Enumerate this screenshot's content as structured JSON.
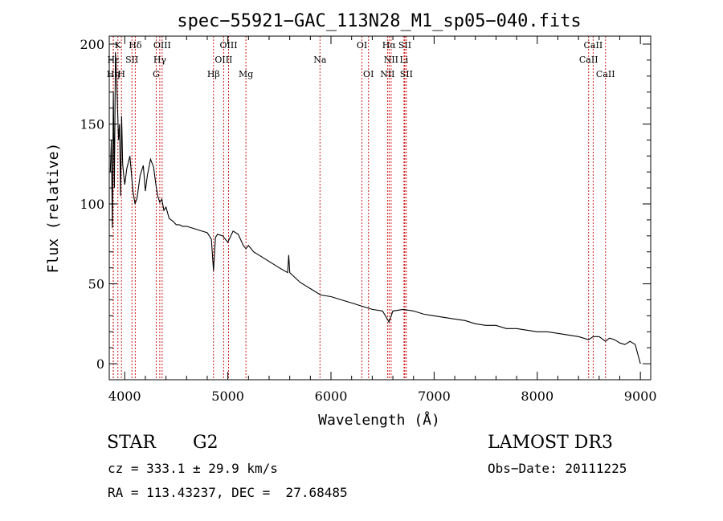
{
  "chart_data": {
    "type": "line",
    "title": "spec−55921−GAC_113N28_M1_sp05−040.fits",
    "xlabel": "Wavelength (Å)",
    "ylabel": "Flux (relative)",
    "xlim": [
      3850,
      9100
    ],
    "ylim": [
      -10,
      205
    ],
    "xticks": [
      4000,
      5000,
      6000,
      7000,
      8000,
      9000
    ],
    "yticks": [
      0,
      50,
      100,
      150,
      200
    ],
    "series": [
      {
        "name": "flux",
        "x": [
          3860,
          3870,
          3880,
          3890,
          3900,
          3910,
          3920,
          3930,
          3940,
          3950,
          3960,
          3970,
          3980,
          3990,
          4000,
          4020,
          4050,
          4080,
          4100,
          4120,
          4150,
          4180,
          4200,
          4220,
          4250,
          4280,
          4300,
          4320,
          4340,
          4360,
          4380,
          4400,
          4430,
          4470,
          4500,
          4530,
          4560,
          4600,
          4650,
          4700,
          4750,
          4800,
          4840,
          4861,
          4880,
          4900,
          4950,
          5000,
          5050,
          5100,
          5150,
          5175,
          5200,
          5250,
          5300,
          5400,
          5500,
          5580,
          5590,
          5600,
          5700,
          5800,
          5900,
          6000,
          6100,
          6200,
          6300,
          6400,
          6500,
          6563,
          6600,
          6700,
          6800,
          6900,
          7000,
          7100,
          7200,
          7300,
          7400,
          7500,
          7600,
          7700,
          7800,
          7900,
          8000,
          8100,
          8200,
          8300,
          8400,
          8498,
          8542,
          8600,
          8662,
          8700,
          8750,
          8800,
          8850,
          8900,
          8950,
          9000
        ],
        "values": [
          120,
          140,
          85,
          170,
          110,
          195,
          180,
          160,
          140,
          150,
          105,
          155,
          125,
          118,
          112,
          122,
          130,
          108,
          100,
          104,
          118,
          124,
          108,
          118,
          128,
          123,
          113,
          105,
          101,
          103,
          96,
          98,
          91,
          89,
          87,
          87,
          86,
          86,
          85,
          84,
          83,
          82,
          78,
          58,
          79,
          81,
          80,
          76,
          83,
          81,
          74,
          72,
          74,
          70,
          68,
          64,
          60,
          57,
          68,
          57,
          51,
          47,
          43,
          42,
          40,
          38,
          36,
          34,
          33,
          26,
          33,
          34,
          33,
          31,
          30,
          29,
          28,
          27,
          25,
          24,
          24,
          22,
          22,
          21,
          20,
          20,
          19,
          18,
          17,
          15,
          17,
          17,
          14,
          16,
          15,
          13,
          12,
          14,
          12,
          0
        ]
      }
    ],
    "spectral_lines": [
      {
        "label": "K",
        "wavelength": 3934,
        "row": 0
      },
      {
        "label": "Hε",
        "wavelength": 3890,
        "row": 1
      },
      {
        "label": "Hη",
        "wavelength": 3889,
        "row": 2
      },
      {
        "label": "H",
        "wavelength": 3968,
        "row": 2
      },
      {
        "label": "SII",
        "wavelength": 4070,
        "row": 1
      },
      {
        "label": "Hδ",
        "wavelength": 4102,
        "row": 0
      },
      {
        "label": "OIII",
        "wavelength": 4363,
        "row": 0
      },
      {
        "label": "Hγ",
        "wavelength": 4340,
        "row": 1
      },
      {
        "label": "G",
        "wavelength": 4305,
        "row": 2
      },
      {
        "label": "OIII",
        "wavelength": 5007,
        "row": 0
      },
      {
        "label": "OIII",
        "wavelength": 4959,
        "row": 1
      },
      {
        "label": "Hβ",
        "wavelength": 4861,
        "row": 2
      },
      {
        "label": "Mg",
        "wavelength": 5175,
        "row": 2
      },
      {
        "label": "Na",
        "wavelength": 5893,
        "row": 1
      },
      {
        "label": "OI",
        "wavelength": 6300,
        "row": 0
      },
      {
        "label": "OI",
        "wavelength": 6364,
        "row": 2
      },
      {
        "label": "Hα",
        "wavelength": 6563,
        "row": 0
      },
      {
        "label": "SII",
        "wavelength": 6716,
        "row": 0
      },
      {
        "label": "NII",
        "wavelength": 6583,
        "row": 1
      },
      {
        "label": "Li",
        "wavelength": 6708,
        "row": 1
      },
      {
        "label": "NII",
        "wavelength": 6548,
        "row": 2
      },
      {
        "label": "SII",
        "wavelength": 6731,
        "row": 2
      },
      {
        "label": "CaII",
        "wavelength": 8542,
        "row": 0
      },
      {
        "label": "CaII",
        "wavelength": 8498,
        "row": 1
      },
      {
        "label": "CaII",
        "wavelength": 8662,
        "row": 2
      }
    ]
  },
  "info": {
    "object_class": "STAR",
    "subclass": "G2",
    "survey": "LAMOST DR3",
    "cz": "cz = 333.1 ± 29.9 km/s",
    "obs_date": "Obs−Date: 20111225",
    "coords": "RA = 113.43237, DEC =  27.68485"
  },
  "colors": {
    "line_marker": "#cc0000",
    "spectrum": "#000000",
    "axis": "#000000"
  }
}
